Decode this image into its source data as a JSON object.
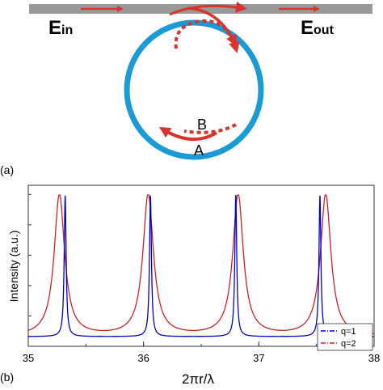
{
  "panel_a": {
    "label": "(a)",
    "e_in_main": "E",
    "e_in_sub": "in",
    "e_out_main": "E",
    "e_out_sub": "out",
    "label_A": "A",
    "label_B": "B",
    "colors": {
      "waveguide": "#999999",
      "ring": "#1a9ad6",
      "arrow": "#d9342b"
    }
  },
  "panel_b": {
    "label": "(b)"
  },
  "chart_data": {
    "type": "line",
    "xlabel": "2πr/λ",
    "ylabel": "Intensity (a.u.)",
    "xlim": [
      35,
      38
    ],
    "x_ticks": [
      "35",
      "36",
      "37",
      "38"
    ],
    "legend_position": "bottom-right",
    "series": [
      {
        "name": "q=1",
        "color": "#0000cc",
        "style": "dash-dot",
        "peaks": [
          35.32,
          36.06,
          36.8,
          37.53
        ],
        "half_width": 0.01
      },
      {
        "name": "q=2",
        "color": "#cc2222",
        "style": "dash-dot",
        "peaks": [
          35.27,
          36.04,
          36.82,
          37.58
        ],
        "half_width": 0.055
      }
    ]
  }
}
